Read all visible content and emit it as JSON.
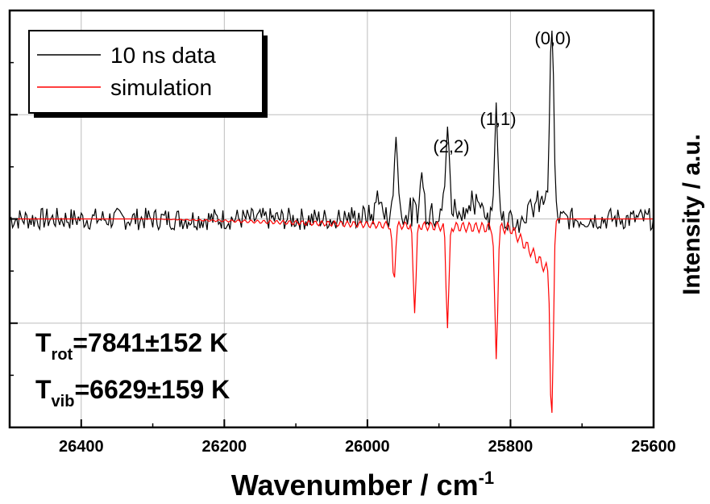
{
  "chart_data": {
    "type": "line",
    "xlabel": "Wavenumber / cm",
    "xlabel_sup": "-1",
    "ylabel": "Intensity / a.u.",
    "xlim": [
      26500,
      25600
    ],
    "x_reversed": true,
    "x_ticks": [
      26400,
      26200,
      26000,
      25800,
      25600
    ],
    "x_tick_labels": [
      "26400",
      "26200",
      "26000",
      "25800",
      "25600"
    ],
    "ylim": [
      -1.0,
      1.0
    ],
    "y_tick_labels_shown": false,
    "grid": true,
    "legend_position": "top-left",
    "series": [
      {
        "name": "10 ns data",
        "color": "#000000",
        "baseline": 0.0,
        "noise": 0.03,
        "peaks": [
          {
            "x": 25742,
            "h": 0.92,
            "w": 2.5
          },
          {
            "x": 25820,
            "h": 0.51,
            "w": 2.5
          },
          {
            "x": 25888,
            "h": 0.39,
            "w": 2.5
          },
          {
            "x": 25960,
            "h": 0.38,
            "w": 2.5
          },
          {
            "x": 25924,
            "h": 0.18,
            "w": 2.5
          },
          {
            "x": 25985,
            "h": 0.12,
            "w": 2.5
          }
        ]
      },
      {
        "name": "simulation",
        "color": "#ff0000",
        "baseline": 0.0,
        "peaks": [
          {
            "x": 25742,
            "h": -0.93,
            "w": 2.0
          },
          {
            "x": 25820,
            "h": -0.64,
            "w": 2.0
          },
          {
            "x": 25888,
            "h": -0.47,
            "w": 2.0
          },
          {
            "x": 25934,
            "h": -0.4,
            "w": 2.0
          },
          {
            "x": 25963,
            "h": -0.27,
            "w": 2.0
          }
        ]
      }
    ],
    "annotations": {
      "peaks": [
        {
          "text": "(0,0)",
          "x": 25742,
          "y": 1.06
        },
        {
          "text": "(1,1)",
          "x": 25818,
          "y": 0.68
        },
        {
          "text": "(2,2)",
          "x": 25890,
          "y": 0.53
        }
      ],
      "t_rot": {
        "base": "T",
        "sub": "rot",
        "value": "=7841±152 K"
      },
      "t_vib": {
        "base": "T",
        "sub": "vib",
        "value": "=6629±159 K"
      }
    }
  }
}
